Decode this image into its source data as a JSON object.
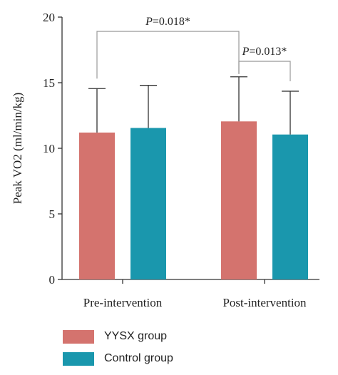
{
  "chart_data": {
    "type": "bar",
    "categories": [
      "Pre-intervention",
      "Post-intervention"
    ],
    "series": [
      {
        "name": "YYSX group",
        "color": "#d4736e",
        "values": [
          11.2,
          12.05
        ],
        "error": [
          3.35,
          3.4
        ]
      },
      {
        "name": "Control group",
        "color": "#1a97ad",
        "values": [
          11.55,
          11.05
        ],
        "error": [
          3.25,
          3.3
        ]
      }
    ],
    "ylabel": "Peak VO2 (ml/min/kg)",
    "xlabel": "",
    "title": "",
    "ylim": [
      0,
      20
    ],
    "yticks": [
      0,
      5,
      10,
      15,
      20
    ],
    "grid": false,
    "legend_position": "bottom-left",
    "annotations": [
      {
        "p_prefix": "P",
        "p_value": "=0.018*",
        "between": "YYSX Pre-intervention vs YYSX Post-intervention"
      },
      {
        "p_prefix": "P",
        "p_value": "=0.013*",
        "between": "YYSX Post-intervention vs Control Post-intervention"
      }
    ]
  }
}
